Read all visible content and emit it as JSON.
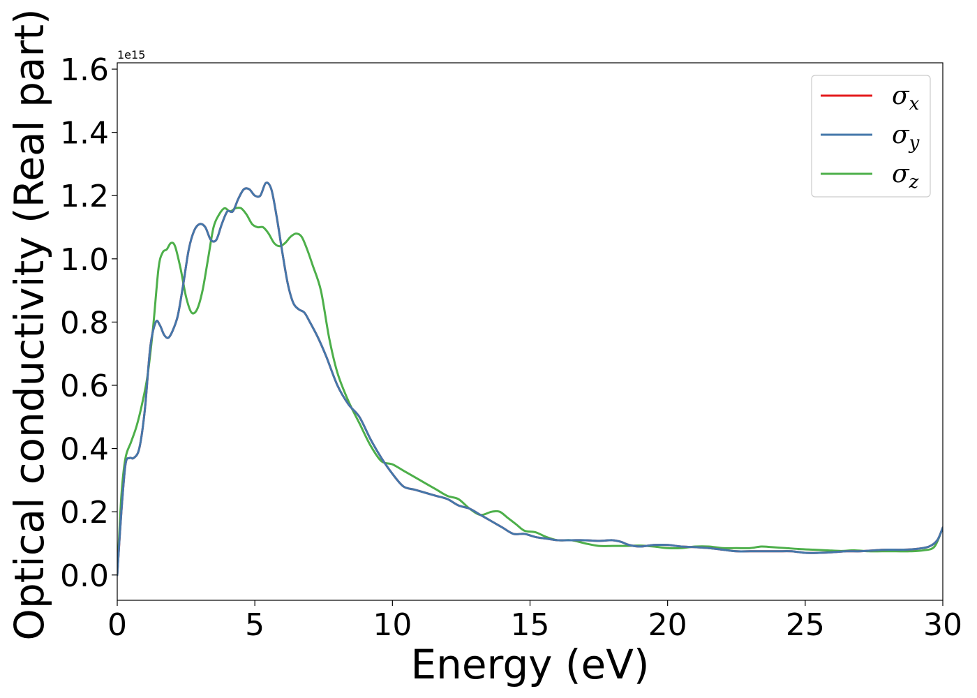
{
  "chart_data": {
    "type": "line",
    "xlabel": "Energy (eV)",
    "ylabel": "Optical conductivity (Real part)",
    "y_offset_text": "1e15",
    "xlim": [
      0,
      30
    ],
    "ylim": [
      -0.08,
      1.62
    ],
    "x_ticks": [
      0,
      5,
      10,
      15,
      20,
      25,
      30
    ],
    "x_tick_labels": [
      "0",
      "5",
      "10",
      "15",
      "20",
      "25",
      "30"
    ],
    "y_ticks": [
      0.0,
      0.2,
      0.4,
      0.6,
      0.8,
      1.0,
      1.2,
      1.4,
      1.6
    ],
    "y_tick_labels": [
      "0.0",
      "0.2",
      "0.4",
      "0.6",
      "0.8",
      "1.0",
      "1.2",
      "1.4",
      "1.6"
    ],
    "grid": false,
    "legend_position": "top-right",
    "series": [
      {
        "name": "σx",
        "symbol": "σ",
        "subscript": "x",
        "color": "#e41a1c",
        "x": [
          0.0,
          0.15,
          0.3,
          0.45,
          0.6,
          0.8,
          1.0,
          1.2,
          1.4,
          1.55,
          1.7,
          1.85,
          2.0,
          2.2,
          2.4,
          2.6,
          2.8,
          3.0,
          3.2,
          3.4,
          3.6,
          3.8,
          4.0,
          4.2,
          4.4,
          4.6,
          4.8,
          5.0,
          5.2,
          5.4,
          5.6,
          5.8,
          6.0,
          6.2,
          6.4,
          6.6,
          6.8,
          7.0,
          7.3,
          7.6,
          8.0,
          8.4,
          8.8,
          9.2,
          9.6,
          10.0,
          10.4,
          10.8,
          11.2,
          11.6,
          12.0,
          12.4,
          12.8,
          13.2,
          13.6,
          14.0,
          14.4,
          14.8,
          15.2,
          15.6,
          16.0,
          16.5,
          17.0,
          17.5,
          18.0,
          18.3,
          18.6,
          19.0,
          19.5,
          20.0,
          20.5,
          21.0,
          21.5,
          22.0,
          22.5,
          23.0,
          23.5,
          24.0,
          24.5,
          25.0,
          25.5,
          26.0,
          26.5,
          27.0,
          27.5,
          28.0,
          28.5,
          29.0,
          29.5,
          29.8,
          30.0
        ],
        "values": [
          0.0,
          0.2,
          0.35,
          0.37,
          0.37,
          0.4,
          0.52,
          0.72,
          0.8,
          0.79,
          0.76,
          0.75,
          0.77,
          0.82,
          0.92,
          1.03,
          1.09,
          1.11,
          1.1,
          1.06,
          1.06,
          1.11,
          1.15,
          1.15,
          1.19,
          1.22,
          1.22,
          1.2,
          1.2,
          1.24,
          1.22,
          1.13,
          1.02,
          0.92,
          0.86,
          0.84,
          0.83,
          0.8,
          0.75,
          0.69,
          0.6,
          0.54,
          0.5,
          0.43,
          0.37,
          0.32,
          0.28,
          0.27,
          0.26,
          0.25,
          0.24,
          0.22,
          0.21,
          0.19,
          0.17,
          0.15,
          0.13,
          0.13,
          0.12,
          0.115,
          0.11,
          0.11,
          0.11,
          0.108,
          0.11,
          0.105,
          0.095,
          0.09,
          0.095,
          0.095,
          0.09,
          0.088,
          0.085,
          0.08,
          0.075,
          0.075,
          0.075,
          0.075,
          0.075,
          0.07,
          0.07,
          0.072,
          0.075,
          0.075,
          0.078,
          0.08,
          0.08,
          0.082,
          0.09,
          0.11,
          0.15
        ]
      },
      {
        "name": "σy",
        "symbol": "σ",
        "subscript": "y",
        "color": "#4477aa",
        "x": [
          0.0,
          0.15,
          0.3,
          0.45,
          0.6,
          0.8,
          1.0,
          1.2,
          1.4,
          1.55,
          1.7,
          1.85,
          2.0,
          2.2,
          2.4,
          2.6,
          2.8,
          3.0,
          3.2,
          3.4,
          3.6,
          3.8,
          4.0,
          4.2,
          4.4,
          4.6,
          4.8,
          5.0,
          5.2,
          5.4,
          5.6,
          5.8,
          6.0,
          6.2,
          6.4,
          6.6,
          6.8,
          7.0,
          7.3,
          7.6,
          8.0,
          8.4,
          8.8,
          9.2,
          9.6,
          10.0,
          10.4,
          10.8,
          11.2,
          11.6,
          12.0,
          12.4,
          12.8,
          13.2,
          13.6,
          14.0,
          14.4,
          14.8,
          15.2,
          15.6,
          16.0,
          16.5,
          17.0,
          17.5,
          18.0,
          18.3,
          18.6,
          19.0,
          19.5,
          20.0,
          20.5,
          21.0,
          21.5,
          22.0,
          22.5,
          23.0,
          23.5,
          24.0,
          24.5,
          25.0,
          25.5,
          26.0,
          26.5,
          27.0,
          27.5,
          28.0,
          28.5,
          29.0,
          29.5,
          29.8,
          30.0
        ],
        "values": [
          0.0,
          0.2,
          0.35,
          0.37,
          0.37,
          0.4,
          0.52,
          0.72,
          0.8,
          0.79,
          0.76,
          0.75,
          0.77,
          0.82,
          0.92,
          1.03,
          1.09,
          1.11,
          1.1,
          1.06,
          1.06,
          1.11,
          1.15,
          1.15,
          1.19,
          1.22,
          1.22,
          1.2,
          1.2,
          1.24,
          1.22,
          1.13,
          1.02,
          0.92,
          0.86,
          0.84,
          0.83,
          0.8,
          0.75,
          0.69,
          0.6,
          0.54,
          0.5,
          0.43,
          0.37,
          0.32,
          0.28,
          0.27,
          0.26,
          0.25,
          0.24,
          0.22,
          0.21,
          0.19,
          0.17,
          0.15,
          0.13,
          0.13,
          0.12,
          0.115,
          0.11,
          0.11,
          0.11,
          0.108,
          0.11,
          0.105,
          0.095,
          0.09,
          0.095,
          0.095,
          0.09,
          0.088,
          0.085,
          0.08,
          0.075,
          0.075,
          0.075,
          0.075,
          0.075,
          0.07,
          0.07,
          0.072,
          0.075,
          0.075,
          0.078,
          0.08,
          0.08,
          0.082,
          0.09,
          0.11,
          0.15
        ]
      },
      {
        "name": "σz",
        "symbol": "σ",
        "subscript": "z",
        "color": "#4daf4a",
        "x": [
          0.0,
          0.15,
          0.3,
          0.5,
          0.7,
          0.9,
          1.1,
          1.3,
          1.5,
          1.65,
          1.8,
          1.95,
          2.1,
          2.3,
          2.5,
          2.7,
          2.9,
          3.1,
          3.3,
          3.5,
          3.7,
          3.9,
          4.1,
          4.3,
          4.5,
          4.7,
          4.9,
          5.1,
          5.3,
          5.5,
          5.7,
          5.9,
          6.1,
          6.3,
          6.5,
          6.7,
          6.9,
          7.1,
          7.4,
          7.7,
          8.0,
          8.4,
          8.8,
          9.2,
          9.6,
          10.0,
          10.4,
          10.8,
          11.2,
          11.6,
          12.0,
          12.4,
          12.8,
          13.2,
          13.6,
          13.9,
          14.2,
          14.5,
          14.8,
          15.2,
          15.6,
          16.0,
          16.5,
          17.0,
          17.5,
          18.0,
          18.5,
          19.0,
          19.5,
          20.0,
          20.5,
          21.0,
          21.5,
          22.0,
          22.5,
          23.0,
          23.4,
          23.8,
          24.3,
          24.8,
          25.3,
          25.8,
          26.3,
          26.8,
          27.3,
          27.8,
          28.3,
          28.8,
          29.3,
          29.7,
          30.0
        ],
        "values": [
          0.0,
          0.25,
          0.37,
          0.42,
          0.47,
          0.54,
          0.63,
          0.78,
          0.97,
          1.02,
          1.03,
          1.05,
          1.04,
          0.97,
          0.88,
          0.83,
          0.84,
          0.9,
          1.0,
          1.1,
          1.14,
          1.16,
          1.15,
          1.16,
          1.16,
          1.14,
          1.11,
          1.1,
          1.1,
          1.08,
          1.05,
          1.04,
          1.05,
          1.07,
          1.08,
          1.07,
          1.03,
          0.98,
          0.9,
          0.75,
          0.64,
          0.55,
          0.48,
          0.41,
          0.36,
          0.35,
          0.33,
          0.31,
          0.29,
          0.27,
          0.25,
          0.24,
          0.21,
          0.19,
          0.2,
          0.2,
          0.18,
          0.16,
          0.14,
          0.135,
          0.12,
          0.11,
          0.11,
          0.1,
          0.092,
          0.092,
          0.092,
          0.093,
          0.09,
          0.085,
          0.085,
          0.09,
          0.09,
          0.085,
          0.085,
          0.085,
          0.09,
          0.088,
          0.085,
          0.082,
          0.08,
          0.078,
          0.076,
          0.078,
          0.075,
          0.075,
          0.075,
          0.075,
          0.078,
          0.09,
          0.15
        ]
      }
    ]
  }
}
